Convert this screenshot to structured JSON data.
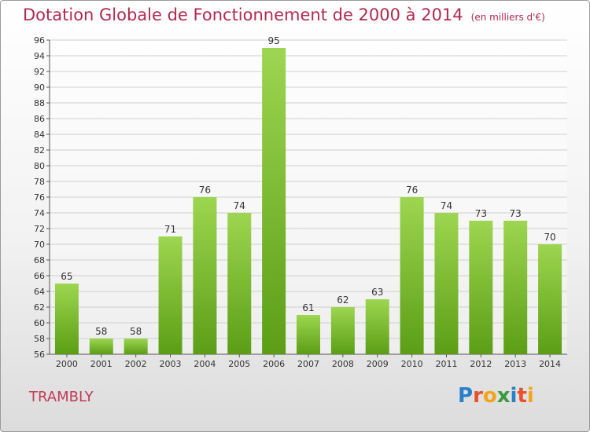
{
  "header": {
    "title": "Dotation Globale de Fonctionnement de 2000 à 2014",
    "subtitle": "(en milliers d'€)"
  },
  "commune": "TRAMBLY",
  "logo": {
    "text": "Proxiti",
    "letter_colors": [
      "#2a7fc9",
      "#e8502a",
      "#f2a51b",
      "#3a9a3a",
      "#2a7fc9",
      "#e8502a",
      "#f2a51b"
    ]
  },
  "colors": {
    "bar_top": "#9dd650",
    "bar_bottom": "#5b9e15",
    "title": "#b2294e",
    "commune": "#c23a57"
  },
  "chart_data": {
    "type": "bar",
    "title": "Dotation Globale de Fonctionnement de 2000 à 2014",
    "subtitle": "(en milliers d'€)",
    "categories": [
      "2000",
      "2001",
      "2002",
      "2003",
      "2004",
      "2005",
      "2006",
      "2007",
      "2008",
      "2009",
      "2010",
      "2011",
      "2012",
      "2013",
      "2014"
    ],
    "values": [
      65,
      58,
      58,
      71,
      76,
      74,
      95,
      61,
      62,
      63,
      76,
      74,
      73,
      73,
      70
    ],
    "ylim": [
      56,
      96
    ],
    "yticks": [
      56,
      58,
      60,
      62,
      64,
      66,
      68,
      70,
      72,
      74,
      76,
      78,
      80,
      82,
      84,
      86,
      88,
      90,
      92,
      94,
      96
    ],
    "grid": true,
    "xlabel": "",
    "ylabel": ""
  }
}
